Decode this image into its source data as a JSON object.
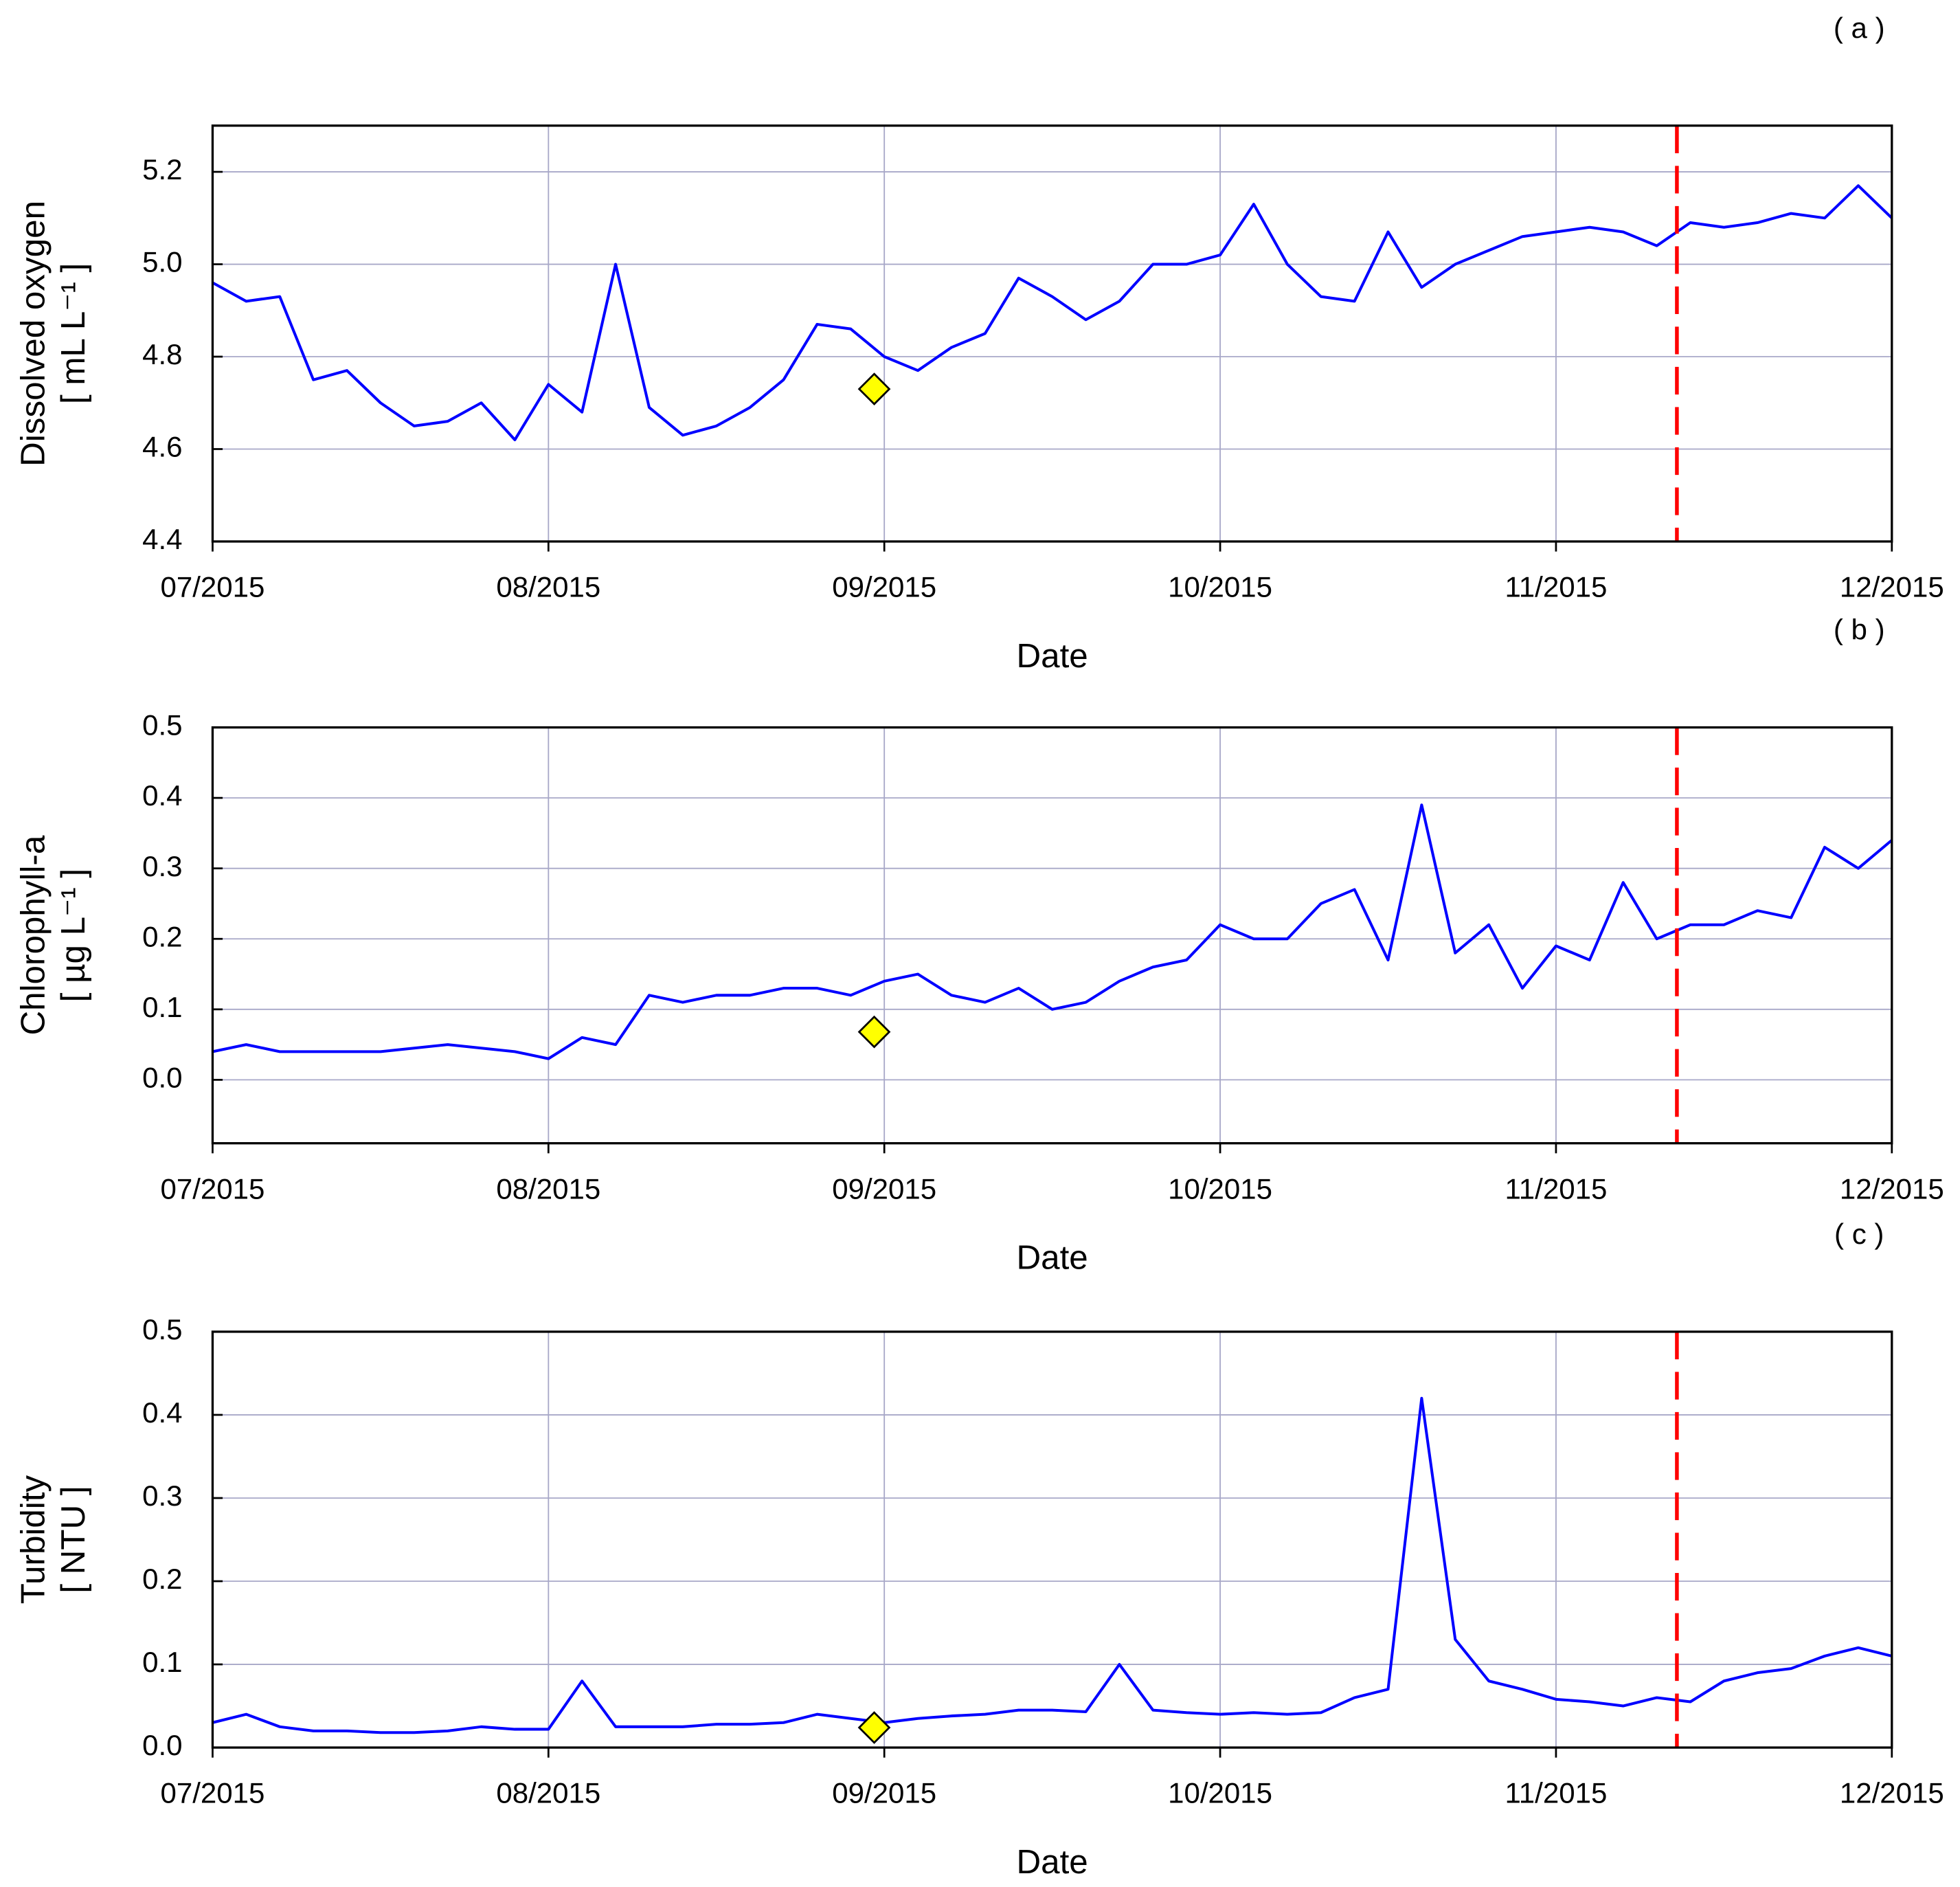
{
  "chart_data": [
    {
      "type": "line",
      "panel_label": "( a )",
      "xlabel": "Date",
      "ylabel": [
        "Dissolved oxygen",
        "[ mL L⁻¹ ]"
      ],
      "x": [
        7.0,
        7.1,
        7.2,
        7.3,
        7.4,
        7.5,
        7.6,
        7.7,
        7.8,
        7.9,
        8.0,
        8.1,
        8.2,
        8.3,
        8.4,
        8.5,
        8.6,
        8.7,
        8.8,
        8.9,
        9.0,
        9.1,
        9.2,
        9.3,
        9.4,
        9.5,
        9.6,
        9.7,
        9.8,
        9.9,
        10.0,
        10.1,
        10.2,
        10.3,
        10.4,
        10.5,
        10.6,
        10.7,
        10.8,
        10.9,
        11.0,
        11.1,
        11.2,
        11.3,
        11.4,
        11.5,
        11.6,
        11.7,
        11.8,
        11.9,
        12.0
      ],
      "series": [
        {
          "color": "#0000ff",
          "values": [
            4.96,
            4.92,
            4.93,
            4.75,
            4.77,
            4.7,
            4.65,
            4.66,
            4.7,
            4.62,
            4.74,
            4.68,
            5.0,
            4.69,
            4.63,
            4.65,
            4.69,
            4.75,
            4.87,
            4.86,
            4.8,
            4.77,
            4.82,
            4.85,
            4.97,
            4.93,
            4.88,
            4.92,
            5.0,
            5.0,
            5.02,
            5.13,
            5.0,
            4.93,
            4.92,
            5.07,
            4.95,
            5.0,
            5.03,
            5.06,
            5.07,
            5.08,
            5.07,
            5.04,
            5.09,
            5.08,
            5.09,
            5.11,
            5.1,
            5.17,
            5.1
          ]
        }
      ],
      "xlim": [
        7,
        12
      ],
      "xticks": [
        {
          "value": 7,
          "label": "07/2015"
        },
        {
          "value": 8,
          "label": "08/2015"
        },
        {
          "value": 9,
          "label": "09/2015"
        },
        {
          "value": 10,
          "label": "10/2015"
        },
        {
          "value": 11,
          "label": "11/2015"
        },
        {
          "value": 12,
          "label": "12/2015"
        }
      ],
      "ylim": [
        4.4,
        5.3
      ],
      "yticks": [
        4.4,
        4.6,
        4.8,
        {
          "value": 5,
          "label": "5.0"
        },
        5.2
      ],
      "grid": true,
      "vline": {
        "x": 11.36,
        "color": "#ff0000"
      },
      "marker": {
        "x": 8.97,
        "y": 4.73,
        "color": "#ffff00"
      }
    },
    {
      "type": "line",
      "panel_label": "( b )",
      "xlabel": "Date",
      "ylabel": [
        "Chlorophyll-a",
        "[ µg L⁻¹ ]"
      ],
      "x": [
        7.0,
        7.1,
        7.2,
        7.3,
        7.4,
        7.5,
        7.6,
        7.7,
        7.8,
        7.9,
        8.0,
        8.1,
        8.2,
        8.3,
        8.4,
        8.5,
        8.6,
        8.7,
        8.8,
        8.9,
        9.0,
        9.1,
        9.2,
        9.3,
        9.4,
        9.5,
        9.6,
        9.7,
        9.8,
        9.9,
        10.0,
        10.1,
        10.2,
        10.3,
        10.4,
        10.5,
        10.6,
        10.7,
        10.8,
        10.9,
        11.0,
        11.1,
        11.2,
        11.3,
        11.4,
        11.5,
        11.6,
        11.7,
        11.8,
        11.9,
        12.0
      ],
      "series": [
        {
          "color": "#0000ff",
          "values": [
            0.04,
            0.05,
            0.04,
            0.04,
            0.04,
            0.04,
            0.045,
            0.05,
            0.045,
            0.04,
            0.03,
            0.06,
            0.05,
            0.12,
            0.11,
            0.12,
            0.12,
            0.13,
            0.13,
            0.12,
            0.14,
            0.15,
            0.12,
            0.11,
            0.13,
            0.1,
            0.11,
            0.14,
            0.16,
            0.17,
            0.22,
            0.2,
            0.2,
            0.25,
            0.27,
            0.17,
            0.39,
            0.18,
            0.22,
            0.13,
            0.19,
            0.17,
            0.28,
            0.2,
            0.22,
            0.22,
            0.24,
            0.23,
            0.33,
            0.3,
            0.34
          ]
        }
      ],
      "xlim": [
        7,
        12
      ],
      "xticks": [
        {
          "value": 7,
          "label": "07/2015"
        },
        {
          "value": 8,
          "label": "08/2015"
        },
        {
          "value": 9,
          "label": "09/2015"
        },
        {
          "value": 10,
          "label": "10/2015"
        },
        {
          "value": 11,
          "label": "11/2015"
        },
        {
          "value": 12,
          "label": "12/2015"
        }
      ],
      "ylim": [
        -0.09,
        0.5
      ],
      "yticks": [
        {
          "value": 0,
          "label": "0.0"
        },
        0.1,
        0.2,
        0.3,
        0.4,
        0.5
      ],
      "grid": true,
      "vline": {
        "x": 11.36,
        "color": "#ff0000"
      },
      "marker": {
        "x": 8.97,
        "y": 0.068,
        "color": "#ffff00"
      }
    },
    {
      "type": "line",
      "panel_label": "( c )",
      "xlabel": "Date",
      "ylabel": [
        "Turbidity",
        "[ NTU ]"
      ],
      "x": [
        7.0,
        7.1,
        7.2,
        7.3,
        7.4,
        7.5,
        7.6,
        7.7,
        7.8,
        7.9,
        8.0,
        8.1,
        8.2,
        8.3,
        8.4,
        8.5,
        8.6,
        8.7,
        8.8,
        8.9,
        9.0,
        9.1,
        9.2,
        9.3,
        9.4,
        9.5,
        9.6,
        9.7,
        9.8,
        9.9,
        10.0,
        10.1,
        10.2,
        10.3,
        10.4,
        10.5,
        10.6,
        10.7,
        10.8,
        10.9,
        11.0,
        11.1,
        11.2,
        11.3,
        11.4,
        11.5,
        11.6,
        11.7,
        11.8,
        11.9,
        12.0
      ],
      "series": [
        {
          "color": "#0000ff",
          "values": [
            0.03,
            0.04,
            0.025,
            0.02,
            0.02,
            0.018,
            0.018,
            0.02,
            0.025,
            0.022,
            0.022,
            0.08,
            0.025,
            0.025,
            0.025,
            0.028,
            0.028,
            0.03,
            0.04,
            0.035,
            0.03,
            0.035,
            0.038,
            0.04,
            0.045,
            0.045,
            0.043,
            0.1,
            0.045,
            0.042,
            0.04,
            0.042,
            0.04,
            0.042,
            0.06,
            0.07,
            0.42,
            0.13,
            0.08,
            0.07,
            0.058,
            0.055,
            0.05,
            0.06,
            0.055,
            0.08,
            0.09,
            0.095,
            0.11,
            0.12,
            0.11
          ]
        }
      ],
      "xlim": [
        7,
        12
      ],
      "xticks": [
        {
          "value": 7,
          "label": "07/2015"
        },
        {
          "value": 8,
          "label": "08/2015"
        },
        {
          "value": 9,
          "label": "09/2015"
        },
        {
          "value": 10,
          "label": "10/2015"
        },
        {
          "value": 11,
          "label": "11/2015"
        },
        {
          "value": 12,
          "label": "12/2015"
        }
      ],
      "ylim": [
        0,
        0.5
      ],
      "yticks": [
        {
          "value": 0,
          "label": "0.0"
        },
        0.1,
        0.2,
        0.3,
        0.4,
        0.5
      ],
      "grid": true,
      "vline": {
        "x": 11.36,
        "color": "#ff0000"
      },
      "marker": {
        "x": 8.97,
        "y": 0.024,
        "color": "#ffff00"
      }
    }
  ]
}
